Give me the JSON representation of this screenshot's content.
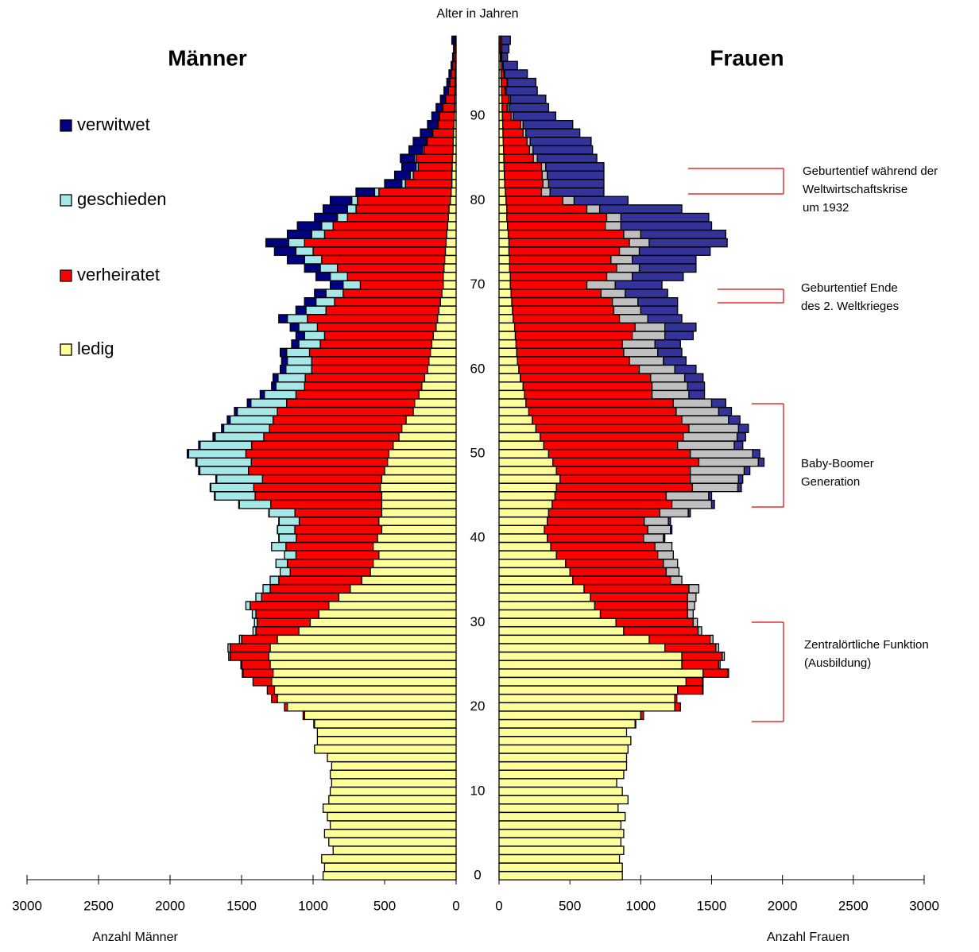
{
  "chart_data": [
    {
      "type": "bar",
      "orientation": "horizontal",
      "title": "Männer",
      "x_label": "Anzahl Männer",
      "y_label": "Alter in Jahren",
      "x_reversed": true,
      "legend": "left",
      "categories": [
        0,
        null,
        null,
        null,
        null,
        null,
        null,
        null,
        null,
        null,
        10,
        null,
        null,
        null,
        null,
        null,
        null,
        null,
        null,
        null,
        20,
        null,
        null,
        null,
        null,
        null,
        null,
        null,
        null,
        null,
        30,
        null,
        null,
        null,
        null,
        null,
        null,
        null,
        null,
        null,
        40,
        null,
        null,
        null,
        null,
        null,
        null,
        null,
        null,
        null,
        50,
        null,
        null,
        null,
        null,
        null,
        null,
        null,
        null,
        null,
        60,
        null,
        null,
        null,
        null,
        null,
        null,
        null,
        null,
        null,
        70,
        null,
        null,
        null,
        null,
        null,
        null,
        null,
        null,
        null,
        80,
        null,
        null,
        null,
        null,
        null,
        null,
        null,
        null,
        null,
        90,
        null,
        null,
        null,
        null,
        null,
        null,
        null,
        null,
        null
      ],
      "xlim": [
        0,
        3000
      ],
      "xticks": [
        0,
        500,
        1000,
        1500,
        2000,
        2500,
        3000
      ],
      "series": [
        {
          "name": "ledig",
          "color": "#ffff99",
          "values": [
            930,
            920,
            940,
            860,
            890,
            920,
            880,
            900,
            930,
            890,
            880,
            870,
            880,
            870,
            900,
            990,
            970,
            970,
            990,
            1060,
            1180,
            1250,
            1270,
            1290,
            1280,
            1300,
            1310,
            1300,
            1250,
            1100,
            1020,
            960,
            890,
            820,
            740,
            660,
            600,
            580,
            540,
            580,
            550,
            520,
            540,
            520,
            520,
            520,
            530,
            520,
            500,
            480,
            470,
            440,
            400,
            380,
            350,
            300,
            290,
            260,
            240,
            220,
            200,
            190,
            180,
            170,
            160,
            140,
            130,
            120,
            110,
            100,
            90,
            90,
            85,
            80,
            75,
            70,
            65,
            60,
            55,
            50,
            40,
            35,
            30,
            30,
            28,
            25,
            22,
            20,
            18,
            15,
            12,
            10,
            9,
            8,
            7,
            6,
            5,
            4,
            3,
            3
          ]
        },
        {
          "name": "verheiratet",
          "color": "#ff0000",
          "values": [
            0,
            0,
            0,
            0,
            0,
            0,
            0,
            0,
            0,
            0,
            0,
            0,
            0,
            0,
            0,
            0,
            0,
            0,
            5,
            10,
            20,
            40,
            50,
            130,
            210,
            200,
            270,
            280,
            250,
            300,
            370,
            440,
            550,
            540,
            560,
            580,
            560,
            600,
            580,
            610,
            568,
            608,
            557,
            607,
            776,
            885,
            885,
            834,
            952,
            952,
            1000,
            990,
            945,
            925,
            930,
            950,
            895,
            860,
            820,
            835,
            810,
            820,
            845,
            780,
            760,
            830,
            910,
            790,
            740,
            690,
            580,
            670,
            745,
            860,
            925,
            990,
            855,
            800,
            705,
            650,
            650,
            505,
            325,
            270,
            237,
            253,
            203,
            182,
            146,
            110,
            104,
            82,
            64,
            47,
            37,
            28,
            19,
            13,
            10,
            7
          ]
        },
        {
          "name": "geschieden",
          "color": "#a6e8e8",
          "values": [
            0,
            0,
            0,
            0,
            0,
            0,
            0,
            0,
            0,
            0,
            0,
            0,
            0,
            0,
            0,
            0,
            0,
            0,
            0,
            0,
            0,
            0,
            0,
            0,
            5,
            5,
            10,
            15,
            15,
            20,
            20,
            25,
            30,
            40,
            50,
            60,
            70,
            80,
            80,
            100,
            120,
            120,
            140,
            180,
            220,
            280,
            300,
            320,
            340,
            380,
            400,
            360,
            340,
            320,
            300,
            280,
            250,
            220,
            200,
            190,
            180,
            170,
            160,
            150,
            140,
            130,
            140,
            140,
            130,
            120,
            120,
            120,
            120,
            120,
            120,
            110,
            90,
            80,
            70,
            60,
            40,
            30,
            25,
            20,
            15,
            12,
            10,
            8,
            6,
            5,
            4,
            3,
            2,
            2,
            1,
            1,
            1,
            0,
            0,
            0
          ]
        },
        {
          "name": "verwitwet",
          "color": "#000080",
          "values": [
            0,
            0,
            0,
            0,
            0,
            0,
            0,
            0,
            0,
            0,
            0,
            0,
            0,
            0,
            0,
            0,
            0,
            0,
            0,
            0,
            0,
            0,
            0,
            0,
            0,
            0,
            0,
            0,
            0,
            0,
            0,
            0,
            0,
            0,
            0,
            0,
            0,
            0,
            0,
            0,
            2,
            2,
            3,
            3,
            4,
            5,
            5,
            6,
            8,
            8,
            10,
            10,
            15,
            15,
            20,
            20,
            25,
            30,
            30,
            35,
            40,
            40,
            45,
            50,
            60,
            60,
            60,
            70,
            80,
            80,
            90,
            100,
            110,
            120,
            150,
            160,
            170,
            170,
            160,
            170,
            150,
            130,
            120,
            110,
            100,
            100,
            95,
            90,
            80,
            70,
            50,
            45,
            35,
            28,
            20,
            15,
            10,
            8,
            5,
            20
          ]
        }
      ]
    },
    {
      "type": "bar",
      "orientation": "horizontal",
      "title": "Frauen",
      "x_label": "Anzahl Frauen",
      "x_reversed": false,
      "xlim": [
        0,
        3000
      ],
      "xticks": [
        0,
        500,
        1000,
        1500,
        2000,
        2500,
        3000
      ],
      "series": [
        {
          "color": "#ffff99",
          "values": [
            870,
            870,
            850,
            880,
            860,
            880,
            860,
            890,
            840,
            910,
            870,
            830,
            880,
            900,
            900,
            910,
            930,
            900,
            960,
            1000,
            1240,
            1240,
            1260,
            1320,
            1440,
            1290,
            1290,
            1170,
            1060,
            880,
            825,
            715,
            675,
            645,
            600,
            520,
            500,
            470,
            405,
            365,
            340,
            320,
            340,
            350,
            375,
            395,
            405,
            430,
            405,
            380,
            350,
            315,
            290,
            260,
            235,
            210,
            190,
            180,
            170,
            150,
            140,
            130,
            125,
            120,
            115,
            110,
            100,
            95,
            90,
            85,
            80,
            80,
            75,
            75,
            70,
            70,
            65,
            60,
            55,
            55,
            50,
            45,
            40,
            38,
            36,
            34,
            32,
            30,
            28,
            26,
            24,
            22,
            20,
            18,
            16,
            14,
            12,
            10,
            8,
            8
          ]
        },
        {
          "color": "#ff0000",
          "values": [
            0,
            0,
            0,
            0,
            0,
            0,
            0,
            0,
            0,
            0,
            0,
            0,
            0,
            0,
            0,
            0,
            0,
            0,
            5,
            20,
            40,
            15,
            175,
            115,
            175,
            260,
            285,
            360,
            430,
            525,
            545,
            615,
            655,
            685,
            740,
            690,
            680,
            690,
            715,
            735,
            680,
            730,
            685,
            785,
            845,
            785,
            960,
            920,
            945,
            1030,
            1000,
            945,
            1010,
            1080,
            1055,
            1040,
            1040,
            900,
            910,
            920,
            850,
            790,
            755,
            750,
            825,
            850,
            750,
            715,
            710,
            635,
            540,
            680,
            755,
            715,
            780,
            850,
            815,
            690,
            705,
            565,
            400,
            255,
            270,
            267,
            264,
            208,
            183,
            168,
            142,
            126,
            61,
            36,
            50,
            24,
            38,
            21,
            14,
            7,
            10,
            11
          ]
        },
        {
          "color": "#c0c0c0",
          "values": [
            0,
            0,
            0,
            0,
            0,
            0,
            0,
            0,
            0,
            0,
            0,
            0,
            0,
            0,
            0,
            0,
            0,
            0,
            0,
            0,
            0,
            0,
            5,
            5,
            5,
            10,
            15,
            20,
            20,
            25,
            30,
            40,
            50,
            60,
            70,
            80,
            90,
            100,
            110,
            120,
            140,
            160,
            170,
            200,
            280,
            300,
            320,
            340,
            380,
            420,
            440,
            400,
            380,
            350,
            330,
            300,
            270,
            260,
            250,
            240,
            250,
            240,
            240,
            230,
            230,
            210,
            200,
            190,
            180,
            170,
            200,
            180,
            160,
            150,
            140,
            140,
            120,
            110,
            100,
            90,
            80,
            60,
            40,
            35,
            30,
            28,
            25,
            22,
            20,
            18,
            15,
            12,
            10,
            8,
            6,
            5,
            4,
            3,
            2,
            1
          ]
        },
        {
          "color": "#333399",
          "values": [
            0,
            0,
            0,
            0,
            0,
            0,
            0,
            0,
            0,
            0,
            0,
            0,
            0,
            0,
            0,
            0,
            0,
            0,
            0,
            0,
            0,
            0,
            0,
            0,
            0,
            0,
            0,
            0,
            0,
            0,
            0,
            0,
            0,
            0,
            0,
            0,
            0,
            0,
            0,
            0,
            10,
            10,
            15,
            15,
            20,
            20,
            25,
            30,
            40,
            40,
            50,
            60,
            60,
            70,
            80,
            90,
            100,
            110,
            120,
            130,
            150,
            160,
            170,
            180,
            200,
            220,
            240,
            260,
            280,
            300,
            330,
            360,
            400,
            450,
            500,
            550,
            600,
            640,
            620,
            580,
            380,
            380,
            390,
            400,
            410,
            420,
            420,
            430,
            380,
            350,
            300,
            280,
            250,
            220,
            200,
            160,
            100,
            40,
            50,
            60
          ]
        }
      ],
      "annotations": [
        {
          "lines": [
            "Geburtentief während der",
            "Weltwirtschaftskrise",
            "um 1932"
          ]
        },
        {
          "lines": [
            "Geburtentief Ende",
            "des 2. Weltkrieges"
          ]
        },
        {
          "lines": [
            "Baby-Boomer",
            "Generation"
          ]
        },
        {
          "lines": [
            "Zentralörtliche Funktion",
            "(Ausbildung)"
          ]
        }
      ]
    }
  ]
}
